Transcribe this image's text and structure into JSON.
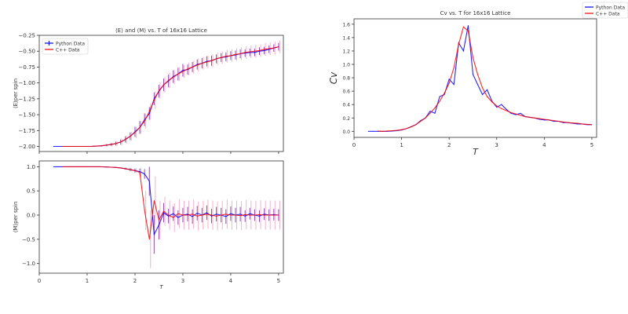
{
  "colors": {
    "python": "#0000ff",
    "cpp": "#ff0000",
    "python_err": "#7b2a9e",
    "cpp_err": "#f5a3c0"
  },
  "chart_data": [
    {
      "id": "energy",
      "type": "line",
      "title": "⟨E⟩ and ⟨M⟩ vs. T of 16x16 Lattice",
      "xlabel": "",
      "ylabel": "⟨E⟩per spin",
      "xlim": [
        0,
        5.1
      ],
      "ylim": [
        -2.08,
        -0.25
      ],
      "xticks": [
        0,
        1,
        2,
        3,
        4,
        5
      ],
      "xtick_labels": [],
      "yticks": [
        -2.0,
        -1.75,
        -1.5,
        -1.25,
        -1.0,
        -0.75,
        -0.5,
        -0.25
      ],
      "ytick_labels": [
        "−2.00",
        "−1.75",
        "−1.50",
        "−1.25",
        "−1.00",
        "−0.75",
        "−0.50",
        "−0.25"
      ],
      "legend": {
        "placement": "top-left",
        "entries": [
          "Python Data",
          "C++ Data"
        ]
      },
      "x": [
        0.3,
        0.4,
        0.5,
        0.6,
        0.7,
        0.8,
        0.9,
        1.0,
        1.1,
        1.2,
        1.3,
        1.4,
        1.5,
        1.6,
        1.7,
        1.8,
        1.9,
        2.0,
        2.1,
        2.2,
        2.3,
        2.4,
        2.5,
        2.6,
        2.7,
        2.8,
        2.9,
        3.0,
        3.1,
        3.2,
        3.3,
        3.4,
        3.5,
        3.6,
        3.7,
        3.8,
        3.9,
        4.0,
        4.1,
        4.2,
        4.3,
        4.4,
        4.5,
        4.6,
        4.7,
        4.8,
        4.9,
        5.0
      ],
      "series": [
        {
          "name": "Python Data",
          "values": [
            -2.0,
            -2.0,
            -2.0,
            -2.0,
            -2.0,
            -2.0,
            -2.0,
            -2.0,
            -1.998,
            -1.995,
            -1.99,
            -1.98,
            -1.97,
            -1.955,
            -1.93,
            -1.89,
            -1.84,
            -1.77,
            -1.7,
            -1.58,
            -1.48,
            -1.25,
            -1.13,
            -1.03,
            -0.97,
            -0.9,
            -0.86,
            -0.8,
            -0.79,
            -0.75,
            -0.71,
            -0.69,
            -0.66,
            -0.65,
            -0.62,
            -0.6,
            -0.59,
            -0.57,
            -0.56,
            -0.54,
            -0.53,
            -0.52,
            -0.52,
            -0.5,
            -0.49,
            -0.47,
            -0.45,
            -0.43
          ],
          "errors": [
            0,
            0,
            0,
            0,
            0,
            0,
            0,
            0,
            0,
            0.005,
            0.01,
            0.015,
            0.02,
            0.03,
            0.04,
            0.05,
            0.06,
            0.08,
            0.1,
            0.1,
            0.1,
            0.1,
            0.1,
            0.1,
            0.1,
            0.1,
            0.1,
            0.1,
            0.08,
            0.08,
            0.08,
            0.08,
            0.08,
            0.08,
            0.07,
            0.07,
            0.07,
            0.07,
            0.07,
            0.07,
            0.06,
            0.06,
            0.06,
            0.06,
            0.06,
            0.06,
            0.06,
            0.06
          ]
        },
        {
          "name": "C++ Data",
          "values": [
            null,
            null,
            -2.0,
            -2.0,
            -2.0,
            -2.0,
            -2.0,
            -2.0,
            -1.998,
            -1.995,
            -1.99,
            -1.98,
            -1.97,
            -1.955,
            -1.93,
            -1.89,
            -1.84,
            -1.78,
            -1.7,
            -1.6,
            -1.45,
            -1.27,
            -1.12,
            -1.03,
            -0.96,
            -0.91,
            -0.86,
            -0.82,
            -0.78,
            -0.75,
            -0.72,
            -0.69,
            -0.67,
            -0.65,
            -0.62,
            -0.6,
            -0.58,
            -0.57,
            -0.55,
            -0.54,
            -0.52,
            -0.51,
            -0.5,
            -0.49,
            -0.47,
            -0.46,
            -0.45,
            -0.43
          ],
          "errors": [
            0,
            0,
            0,
            0,
            0,
            0,
            0,
            0,
            0,
            0,
            0.01,
            0.02,
            0.03,
            0.04,
            0.05,
            0.06,
            0.07,
            0.09,
            0.1,
            0.12,
            0.13,
            0.14,
            0.13,
            0.12,
            0.12,
            0.11,
            0.11,
            0.1,
            0.1,
            0.1,
            0.1,
            0.1,
            0.1,
            0.1,
            0.1,
            0.1,
            0.1,
            0.1,
            0.1,
            0.1,
            0.1,
            0.1,
            0.1,
            0.1,
            0.1,
            0.1,
            0.1,
            0.1
          ]
        }
      ]
    },
    {
      "id": "magnetization",
      "type": "line",
      "title": "",
      "xlabel": "T",
      "ylabel": "⟨M⟩per spin",
      "xlim": [
        0,
        5.1
      ],
      "ylim": [
        -1.2,
        1.12
      ],
      "xticks": [
        0,
        1,
        2,
        3,
        4,
        5
      ],
      "xtick_labels": [
        "0",
        "1",
        "2",
        "3",
        "4",
        "5"
      ],
      "yticks": [
        -1.0,
        -0.5,
        0.0,
        0.5,
        1.0
      ],
      "ytick_labels": [
        "−1.0",
        "−0.5",
        "0.0",
        "0.5",
        "1.0"
      ],
      "x": [
        0.3,
        0.4,
        0.5,
        0.6,
        0.7,
        0.8,
        0.9,
        1.0,
        1.1,
        1.2,
        1.3,
        1.4,
        1.5,
        1.6,
        1.7,
        1.8,
        1.9,
        2.0,
        2.1,
        2.2,
        2.3,
        2.4,
        2.5,
        2.6,
        2.7,
        2.8,
        2.9,
        3.0,
        3.1,
        3.2,
        3.3,
        3.4,
        3.5,
        3.6,
        3.7,
        3.8,
        3.9,
        4.0,
        4.1,
        4.2,
        4.3,
        4.4,
        4.5,
        4.6,
        4.7,
        4.8,
        4.9,
        5.0
      ],
      "series": [
        {
          "name": "Python Data",
          "values": [
            1.0,
            1.0,
            1.0,
            1.0,
            1.0,
            1.0,
            1.0,
            1.0,
            1.0,
            1.0,
            0.998,
            0.995,
            0.99,
            0.985,
            0.975,
            0.96,
            0.94,
            0.92,
            0.9,
            0.85,
            0.7,
            -0.4,
            -0.2,
            0.05,
            -0.02,
            0.03,
            -0.05,
            0.0,
            0.02,
            -0.03,
            0.04,
            0.0,
            0.05,
            -0.02,
            0.02,
            0.0,
            -0.03,
            0.03,
            0.0,
            0.02,
            -0.02,
            0.03,
            0.0,
            -0.02,
            0.02,
            0.0,
            0.01,
            0.0
          ],
          "errors": [
            0,
            0,
            0,
            0,
            0,
            0,
            0,
            0,
            0,
            0,
            0,
            0,
            0,
            0,
            0.01,
            0.02,
            0.03,
            0.04,
            0.06,
            0.1,
            0.3,
            0.4,
            0.3,
            0.2,
            0.15,
            0.15,
            0.15,
            0.15,
            0.15,
            0.15,
            0.15,
            0.15,
            0.15,
            0.15,
            0.15,
            0.15,
            0.15,
            0.15,
            0.15,
            0.15,
            0.12,
            0.12,
            0.12,
            0.12,
            0.12,
            0.12,
            0.12,
            0.12
          ]
        },
        {
          "name": "C++ Data",
          "values": [
            null,
            null,
            1.0,
            1.0,
            1.0,
            1.0,
            1.0,
            1.0,
            1.0,
            1.0,
            0.998,
            0.995,
            0.99,
            0.985,
            0.975,
            0.96,
            0.94,
            0.92,
            0.88,
            0.1,
            -0.5,
            0.3,
            -0.1,
            0.08,
            0.0,
            -0.05,
            0.03,
            0.0,
            0.0,
            0.02,
            -0.02,
            0.0,
            0.02,
            0.0,
            -0.02,
            0.0,
            0.02,
            0.0,
            0.0,
            -0.01,
            0.01,
            0.0,
            0.0,
            0.01,
            0.0,
            0.0,
            0.0,
            0.0
          ],
          "errors": [
            0,
            0,
            0,
            0,
            0,
            0,
            0,
            0,
            0,
            0,
            0,
            0,
            0,
            0,
            0.01,
            0.02,
            0.03,
            0.05,
            0.1,
            0.4,
            0.6,
            0.5,
            0.4,
            0.3,
            0.3,
            0.3,
            0.3,
            0.3,
            0.3,
            0.3,
            0.3,
            0.3,
            0.3,
            0.3,
            0.3,
            0.3,
            0.3,
            0.3,
            0.3,
            0.3,
            0.3,
            0.3,
            0.3,
            0.3,
            0.3,
            0.3,
            0.3,
            0.3
          ]
        }
      ]
    },
    {
      "id": "cv",
      "type": "line",
      "title": "Cv vs. T for 16x16 Lattice",
      "xlabel": "T",
      "ylabel": "Cv",
      "xlim": [
        0,
        5.1
      ],
      "ylim": [
        -0.09,
        1.68
      ],
      "xticks": [
        0,
        1,
        2,
        3,
        4,
        5
      ],
      "xtick_labels": [
        "0",
        "1",
        "2",
        "3",
        "4",
        "5"
      ],
      "yticks": [
        0.0,
        0.2,
        0.4,
        0.6,
        0.8,
        1.0,
        1.2,
        1.4,
        1.6
      ],
      "ytick_labels": [
        "0.0",
        "0.2",
        "0.4",
        "0.6",
        "0.8",
        "1.0",
        "1.2",
        "1.4",
        "1.6"
      ],
      "legend": {
        "placement": "top-right (outside)",
        "entries": [
          "Python Data",
          "C++ Data"
        ]
      },
      "x": [
        0.3,
        0.4,
        0.5,
        0.6,
        0.7,
        0.8,
        0.9,
        1.0,
        1.1,
        1.2,
        1.3,
        1.4,
        1.5,
        1.6,
        1.7,
        1.8,
        1.9,
        2.0,
        2.1,
        2.2,
        2.3,
        2.4,
        2.5,
        2.6,
        2.7,
        2.8,
        2.9,
        3.0,
        3.1,
        3.2,
        3.3,
        3.4,
        3.5,
        3.6,
        3.7,
        3.8,
        3.9,
        4.0,
        4.1,
        4.2,
        4.3,
        4.4,
        4.5,
        4.6,
        4.7,
        4.8,
        4.9,
        5.0
      ],
      "series": [
        {
          "name": "Python Data",
          "values": [
            0,
            0,
            0,
            0,
            0,
            0.005,
            0.01,
            0.02,
            0.04,
            0.07,
            0.1,
            0.16,
            0.2,
            0.3,
            0.27,
            0.52,
            0.55,
            0.78,
            0.7,
            1.32,
            1.2,
            1.58,
            0.85,
            0.7,
            0.55,
            0.62,
            0.45,
            0.36,
            0.4,
            0.33,
            0.27,
            0.25,
            0.27,
            0.22,
            0.21,
            0.2,
            0.18,
            0.17,
            0.17,
            0.15,
            0.15,
            0.13,
            0.13,
            0.12,
            0.11,
            0.11,
            0.1,
            0.1
          ]
        },
        {
          "name": "C++ Data",
          "values": [
            null,
            null,
            0.005,
            0.0,
            0.005,
            0.01,
            0.015,
            0.025,
            0.04,
            0.065,
            0.1,
            0.15,
            0.2,
            0.27,
            0.35,
            0.45,
            0.57,
            0.72,
            0.95,
            1.3,
            1.56,
            1.5,
            1.1,
            0.85,
            0.65,
            0.52,
            0.44,
            0.38,
            0.34,
            0.31,
            0.28,
            0.26,
            0.24,
            0.22,
            0.21,
            0.2,
            0.19,
            0.18,
            0.17,
            0.16,
            0.15,
            0.14,
            0.13,
            0.125,
            0.12,
            0.11,
            0.105,
            0.1
          ]
        }
      ]
    }
  ]
}
